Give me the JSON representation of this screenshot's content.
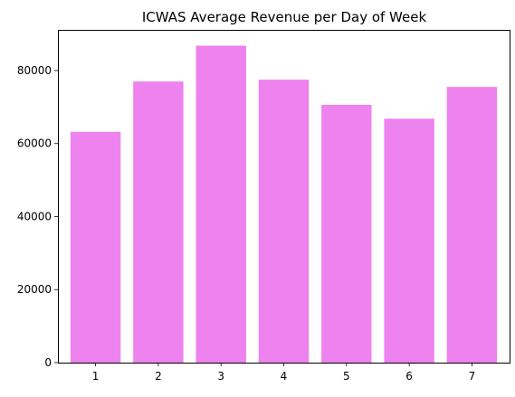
{
  "chart_data": {
    "type": "bar",
    "title": "ICWAS Average Revenue per Day of Week",
    "xlabel": "",
    "ylabel": "",
    "categories": [
      "1",
      "2",
      "3",
      "4",
      "5",
      "6",
      "7"
    ],
    "values": [
      63200,
      77000,
      86800,
      77500,
      70600,
      66800,
      75500
    ],
    "ylim": [
      0,
      91140
    ],
    "yticks": [
      0,
      20000,
      40000,
      60000,
      80000
    ],
    "ytick_labels": [
      "0",
      "20000",
      "40000",
      "60000",
      "80000"
    ],
    "grid": false,
    "bar_color": "#ee82ee"
  }
}
